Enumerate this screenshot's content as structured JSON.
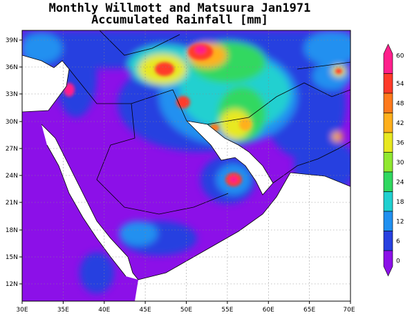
{
  "title": {
    "line1": "Monthly Willmott and Matsuura Jan1971",
    "line2": "Accumulated Rainfall [mm]"
  },
  "map": {
    "lon_range": [
      30,
      70
    ],
    "lat_range": [
      10,
      40
    ],
    "x_ticks": [
      "30E",
      "35E",
      "40E",
      "45E",
      "50E",
      "55E",
      "60E",
      "65E",
      "70E"
    ],
    "y_ticks": [
      "39N",
      "36N",
      "33N",
      "30N",
      "27N",
      "24N",
      "21N",
      "18N",
      "15N",
      "12N"
    ],
    "gridlines": "dotted"
  },
  "colorbar": {
    "labels": [
      "60",
      "54",
      "48",
      "42",
      "36",
      "30",
      "24",
      "18",
      "12",
      "6",
      "0"
    ],
    "colors": [
      "#ff1f8c",
      "#ff3a2a",
      "#ff7a1c",
      "#ffb01c",
      "#e8e820",
      "#90e830",
      "#30d860",
      "#20d0d0",
      "#2090f0",
      "#2840e0",
      "#8c10e8"
    ]
  }
}
